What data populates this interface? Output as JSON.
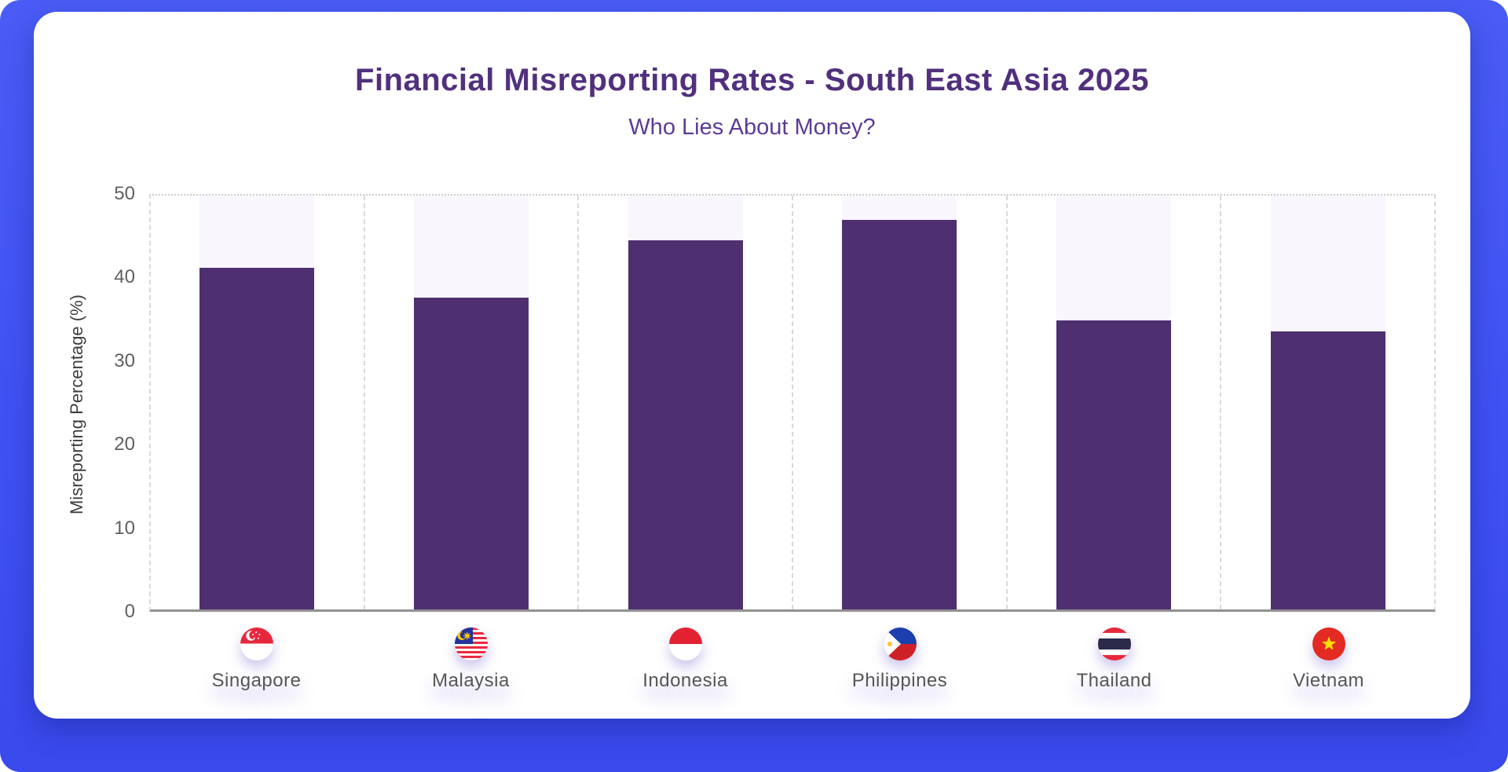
{
  "frame": {
    "background_color": "#3f51f2",
    "card_color": "#ffffff"
  },
  "header": {
    "title": "Financial Misreporting Rates - South East Asia 2025",
    "subtitle": "Who Lies About Money?"
  },
  "chart_data": {
    "type": "bar",
    "title": "Financial Misreporting Rates - South East Asia 2025",
    "subtitle": "Who Lies About Money?",
    "categories": [
      "Singapore",
      "Malaysia",
      "Indonesia",
      "Philippines",
      "Thailand",
      "Vietnam"
    ],
    "values": [
      41.3,
      37.7,
      44.6,
      47.1,
      34.9,
      33.6
    ],
    "xlabel": "",
    "ylabel": "Misreporting Percentage (%)",
    "ylim": [
      0,
      50
    ],
    "ytick_labels": [
      "50",
      "40",
      "30",
      "20",
      "10",
      "0"
    ],
    "grid": "vertical-dashed, top-dotted, no-horizontal-gridlines",
    "legend": "none",
    "bar_color": "#4e2f70",
    "track_color": "#f9f6fd",
    "title_color": "#51307d",
    "subtitle_color": "#5d3b96",
    "flag_icons": [
      "singapore-flag",
      "malaysia-flag",
      "indonesia-flag",
      "philippines-flag",
      "thailand-flag",
      "vietnam-flag"
    ]
  }
}
